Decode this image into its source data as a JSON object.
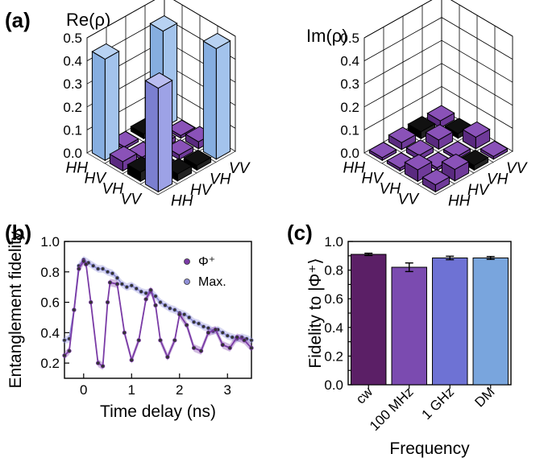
{
  "panels": {
    "a_label": "(a)",
    "b_label": "(b)",
    "c_label": "(c)"
  },
  "chart_data": [
    {
      "type": "bar3d",
      "title": "Re(ρ)",
      "row_labels": [
        "HH",
        "HV",
        "VH",
        "VV"
      ],
      "col_labels": [
        "HH",
        "HV",
        "VH",
        "VV"
      ],
      "zticks": [
        "0.0",
        "0.1",
        "0.2",
        "0.3",
        "0.4",
        "0.5"
      ],
      "zlim": [
        0,
        0.5
      ],
      "values": [
        [
          0.44,
          0.01,
          -0.02,
          0.42
        ],
        [
          0.04,
          0.01,
          0.02,
          0.01
        ],
        [
          -0.04,
          0.01,
          0.02,
          0.03
        ],
        [
          0.45,
          -0.03,
          -0.02,
          0.48
        ]
      ]
    },
    {
      "type": "bar3d",
      "title": "Im(ρ)",
      "row_labels": [
        "HH",
        "HV",
        "VH",
        "VV"
      ],
      "col_labels": [
        "HH",
        "HV",
        "VH",
        "VV"
      ],
      "zticks": [
        "0.0",
        "0.1",
        "0.2",
        "0.3",
        "0.4",
        "0.5"
      ],
      "zlim": [
        0,
        0.5
      ],
      "values": [
        [
          0.0,
          0.03,
          -0.03,
          0.03
        ],
        [
          0.0,
          0.02,
          0.04,
          -0.02
        ],
        [
          0.05,
          0.01,
          0.0,
          0.05
        ],
        [
          0.03,
          0.05,
          -0.02,
          0.0
        ]
      ]
    },
    {
      "type": "line",
      "xlabel": "Time delay (ns)",
      "ylabel": "Entanglement fidelity",
      "xlim": [
        -0.4,
        3.5
      ],
      "ylim": [
        0.1,
        1.0
      ],
      "xticks": [
        "0",
        "1",
        "2",
        "3"
      ],
      "yticks": [
        "0.2",
        "0.4",
        "0.6",
        "0.8",
        "1.0"
      ],
      "legend_position": "top-right",
      "series": [
        {
          "name": "Φ⁺",
          "color": "#7a3ba6",
          "x": [
            -0.4,
            -0.3,
            -0.2,
            -0.1,
            0.0,
            0.05,
            0.15,
            0.3,
            0.4,
            0.5,
            0.55,
            0.7,
            0.85,
            1.0,
            1.15,
            1.3,
            1.4,
            1.5,
            1.6,
            1.75,
            1.9,
            2.0,
            2.15,
            2.3,
            2.45,
            2.6,
            2.75,
            2.9,
            3.05,
            3.2,
            3.35,
            3.5
          ],
          "y": [
            0.25,
            0.28,
            0.55,
            0.82,
            0.87,
            0.85,
            0.6,
            0.2,
            0.18,
            0.6,
            0.73,
            0.72,
            0.4,
            0.22,
            0.35,
            0.62,
            0.68,
            0.58,
            0.35,
            0.24,
            0.35,
            0.52,
            0.45,
            0.3,
            0.28,
            0.4,
            0.42,
            0.32,
            0.3,
            0.37,
            0.35,
            0.3
          ]
        },
        {
          "name": "Max.",
          "color": "#8f8fd6",
          "x": [
            -0.4,
            -0.3,
            -0.2,
            -0.1,
            0.0,
            0.1,
            0.2,
            0.3,
            0.4,
            0.5,
            0.6,
            0.7,
            0.8,
            0.9,
            1.0,
            1.1,
            1.2,
            1.3,
            1.4,
            1.5,
            1.6,
            1.7,
            1.8,
            1.9,
            2.0,
            2.1,
            2.2,
            2.3,
            2.4,
            2.5,
            2.6,
            2.7,
            2.8,
            2.9,
            3.0,
            3.1,
            3.2,
            3.3,
            3.4,
            3.5
          ],
          "y": [
            0.35,
            0.36,
            0.55,
            0.84,
            0.88,
            0.86,
            0.84,
            0.82,
            0.82,
            0.8,
            0.79,
            0.76,
            0.72,
            0.7,
            0.71,
            0.69,
            0.67,
            0.66,
            0.67,
            0.64,
            0.6,
            0.58,
            0.56,
            0.55,
            0.53,
            0.52,
            0.5,
            0.47,
            0.46,
            0.44,
            0.43,
            0.41,
            0.42,
            0.4,
            0.38,
            0.37,
            0.36,
            0.37,
            0.36,
            0.35
          ]
        }
      ]
    },
    {
      "type": "bar",
      "xlabel": "Frequency",
      "ylabel": "Fidelity to |Φ⁺⟩",
      "ylim": [
        0.0,
        1.0
      ],
      "yticks": [
        "0.0",
        "0.1",
        "0.2",
        "0.3",
        "0.4",
        "0.5",
        "0.6",
        "0.7",
        "0.8",
        "0.9",
        "1.0"
      ],
      "categories": [
        "cw",
        "100 MHz",
        "1 GHz",
        "DM"
      ],
      "values": [
        0.91,
        0.82,
        0.885,
        0.885
      ],
      "errors": [
        0.008,
        0.03,
        0.012,
        0.01
      ],
      "colors": [
        "#5b1f66",
        "#7b4bb0",
        "#6e72d4",
        "#79a5dd"
      ]
    }
  ]
}
